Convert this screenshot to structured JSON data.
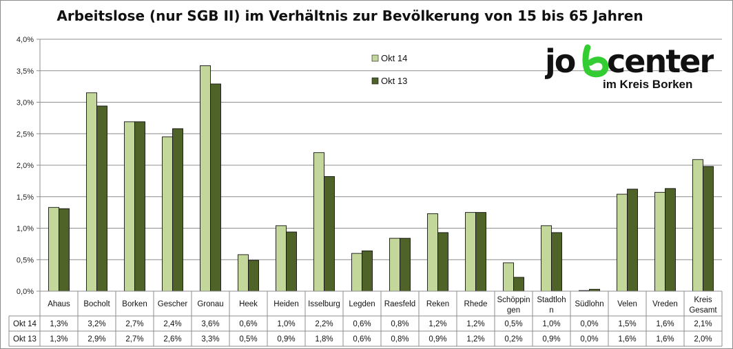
{
  "chart_data": {
    "type": "bar",
    "title": "Arbeitslose (nur SGB II) im Verhältnis zur Bevölkerung von 15 bis 65 Jahren",
    "categories": [
      [
        "Ahaus"
      ],
      [
        "Bocholt"
      ],
      [
        "Borken"
      ],
      [
        "Gescher"
      ],
      [
        "Gronau"
      ],
      [
        "Heek"
      ],
      [
        "Heiden"
      ],
      [
        "Isselburg"
      ],
      [
        "Legden"
      ],
      [
        "Raesfeld"
      ],
      [
        "Reken"
      ],
      [
        "Rhede"
      ],
      [
        "Schöppin",
        "gen"
      ],
      [
        "Stadtloh",
        "n"
      ],
      [
        "Südlohn"
      ],
      [
        "Velen"
      ],
      [
        "Vreden"
      ],
      [
        "Kreis",
        "Gesamt"
      ]
    ],
    "series": [
      {
        "name": "Okt 14",
        "color": "#c4d79b",
        "values": [
          1.33,
          3.15,
          2.69,
          2.45,
          3.58,
          0.58,
          1.04,
          2.2,
          0.6,
          0.84,
          1.23,
          1.25,
          0.45,
          1.04,
          0.01,
          1.54,
          1.57,
          2.09
        ],
        "labels": [
          "1,3%",
          "3,2%",
          "2,7%",
          "2,4%",
          "3,6%",
          "0,6%",
          "1,0%",
          "2,2%",
          "0,6%",
          "0,8%",
          "1,2%",
          "1,2%",
          "0,5%",
          "1,0%",
          "0,0%",
          "1,5%",
          "1,6%",
          "2,1%"
        ]
      },
      {
        "name": "Okt 13",
        "color": "#4f6228",
        "values": [
          1.31,
          2.94,
          2.69,
          2.58,
          3.29,
          0.49,
          0.94,
          1.82,
          0.64,
          0.84,
          0.93,
          1.25,
          0.22,
          0.93,
          0.03,
          1.62,
          1.63,
          1.98
        ],
        "labels": [
          "1,3%",
          "2,9%",
          "2,7%",
          "2,6%",
          "3,3%",
          "0,5%",
          "0,9%",
          "1,8%",
          "0,6%",
          "0,8%",
          "0,9%",
          "1,2%",
          "0,2%",
          "0,9%",
          "0,0%",
          "1,6%",
          "1,6%",
          "2,0%"
        ]
      }
    ],
    "y_ticks": [
      "0,0%",
      "0,5%",
      "1,0%",
      "1,5%",
      "2,0%",
      "2,5%",
      "3,0%",
      "3,5%",
      "4,0%"
    ],
    "ylim": [
      0,
      4
    ],
    "grid": true,
    "legend_position": "top-center",
    "data_table": true
  },
  "logo": {
    "word_pre": "jo",
    "word_post": "center",
    "subtitle": "im Kreis Borken",
    "accent_color": "#33cc33",
    "text_color": "#111111"
  }
}
